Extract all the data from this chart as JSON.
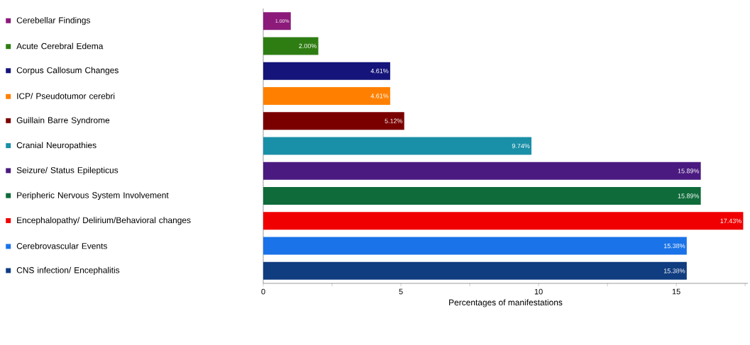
{
  "chart_data": {
    "type": "bar",
    "orientation": "horizontal",
    "xlabel": "Percentages of manifestations",
    "categories": [
      "Cerebellar Findings",
      "Acute Cerebral Edema",
      "Corpus Callosum Changes",
      "ICP/ Pseudotumor cerebri",
      "Guillain Barre Syndrome",
      "Cranial Neuropathies",
      "Seizure/ Status Epilepticus",
      "Peripheric Nervous System Involvement",
      "Encephalopathy/ Delirium/Behavioral changes",
      "Cerebrovascular Events",
      "CNS infection/ Encephalitis"
    ],
    "values": [
      1.0,
      2.0,
      4.61,
      4.61,
      5.12,
      9.74,
      15.89,
      15.89,
      17.43,
      15.38,
      15.38
    ],
    "value_labels": [
      "1.00%",
      "2.00%",
      "4.61%",
      "4.61%",
      "5.12%",
      "9.74%",
      "15.89%",
      "15.89%",
      "17.43%",
      "15.38%",
      "15.38%"
    ],
    "colors": [
      "#8b1a7a",
      "#2e7d12",
      "#14147a",
      "#ff8000",
      "#7a0000",
      "#1a8fa8",
      "#4a1a80",
      "#0f6b3a",
      "#f00000",
      "#1a73e8",
      "#103c80"
    ],
    "xlim": [
      0,
      17.6
    ],
    "xticks": [
      0,
      {
        "value": 2.5,
        "label": null
      },
      5,
      {
        "value": 7.5,
        "label": null
      },
      10,
      {
        "value": 12.5,
        "label": null
      },
      15,
      {
        "value": 17.5,
        "label": null
      }
    ]
  }
}
